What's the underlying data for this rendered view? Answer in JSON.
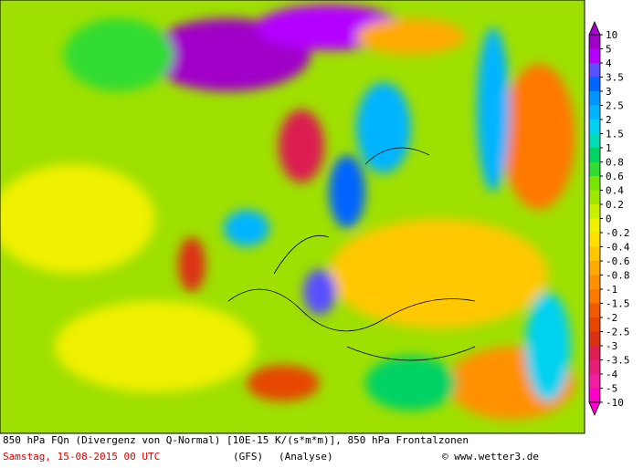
{
  "map": {
    "legend": {
      "levels": [
        10,
        5,
        4,
        3.5,
        3,
        2.5,
        2,
        1.5,
        1,
        0.8,
        0.6,
        0.4,
        0.2,
        0,
        -0.2,
        -0.4,
        -0.6,
        -0.8,
        -1,
        -1.5,
        -2,
        -2.5,
        -3,
        -3.5,
        -4,
        -5,
        -10
      ],
      "band_colors": [
        "#a000c8",
        "#b400ff",
        "#5a50ff",
        "#0064ff",
        "#0096ff",
        "#00b4ff",
        "#00d2f0",
        "#00dcb4",
        "#00d264",
        "#32dc32",
        "#78e600",
        "#a0e600",
        "#c8f000",
        "#f0f000",
        "#ffe100",
        "#ffc800",
        "#ffaa00",
        "#ff9100",
        "#ff7800",
        "#f05a00",
        "#e64600",
        "#dc3214",
        "#dc1e50",
        "#e61e78",
        "#f01ea0",
        "#ff00c8"
      ]
    },
    "caption": {
      "title": "850 hPa FQn (Divergenz von Q-Normal) [10E-15 K/(s*m*m)], 850 hPa Frontalzonen",
      "date": "Samstag, 15-08-2015  00 UTC",
      "model": "(GFS)",
      "run": "(Analyse)",
      "source": "© www.wetter3.de"
    }
  }
}
